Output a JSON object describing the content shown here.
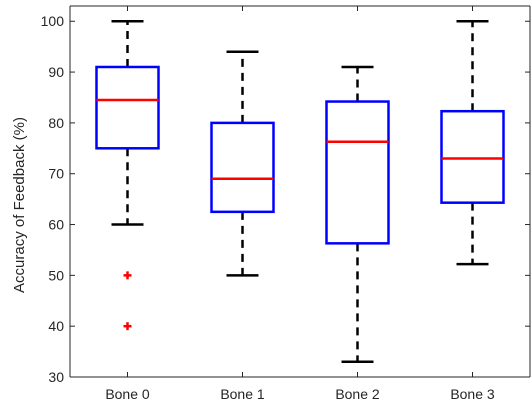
{
  "chart_data": {
    "type": "box",
    "ylabel": "Accuracy of Feedback (%)",
    "xlabel": "",
    "ylim": [
      30,
      103
    ],
    "yticks": [
      30,
      40,
      50,
      60,
      70,
      80,
      90,
      100
    ],
    "categories": [
      "Bone 0",
      "Bone 1",
      "Bone 2",
      "Bone 3"
    ],
    "boxes": [
      {
        "category": "Bone 0",
        "whisker_low": 60,
        "q1": 75,
        "median": 84.5,
        "q3": 91,
        "whisker_high": 100,
        "outliers": [
          50,
          40
        ]
      },
      {
        "category": "Bone 1",
        "whisker_low": 50,
        "q1": 62.5,
        "median": 69,
        "q3": 80,
        "whisker_high": 94,
        "outliers": []
      },
      {
        "category": "Bone 2",
        "whisker_low": 33,
        "q1": 56.3,
        "median": 76.3,
        "q3": 84.2,
        "whisker_high": 91,
        "outliers": []
      },
      {
        "category": "Bone 3",
        "whisker_low": 52.2,
        "q1": 64.3,
        "median": 73,
        "q3": 82.3,
        "whisker_high": 100,
        "outliers": []
      }
    ],
    "grid": false,
    "colors": {
      "box": "#0000ff",
      "median": "#ff0000",
      "whisker": "#000000",
      "outlier": "#ff0000",
      "axis": "#262626"
    }
  }
}
